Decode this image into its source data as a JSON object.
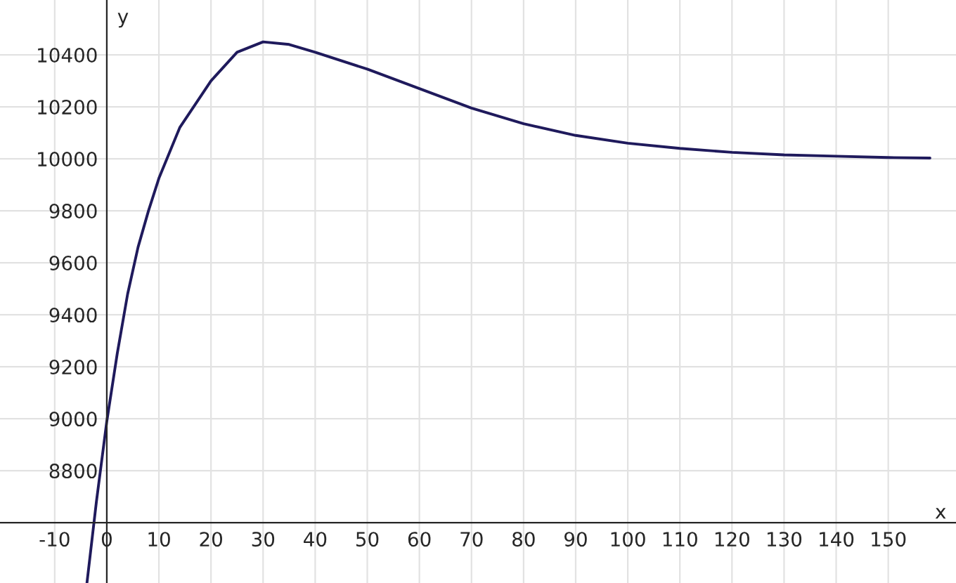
{
  "chart_data": {
    "type": "line",
    "xlabel": "x",
    "ylabel": "y",
    "x": [
      -3.8,
      -2,
      0,
      2,
      4,
      6,
      8,
      10,
      14,
      20,
      25,
      30,
      35,
      40,
      50,
      60,
      70,
      80,
      90,
      100,
      110,
      120,
      130,
      140,
      150,
      158
    ],
    "series": [
      {
        "color": "#1f1a5c",
        "values": [
          8370,
          8680,
          8990,
          9250,
          9480,
          9660,
          9800,
          9925,
          10120,
          10300,
          10410,
          10450,
          10440,
          10410,
          10345,
          10270,
          10195,
          10135,
          10090,
          10060,
          10040,
          10025,
          10015,
          10010,
          10005,
          10003
        ]
      }
    ],
    "xlim": [
      -20.5,
      163
    ],
    "ylim": [
      8368,
      10611
    ],
    "xticks": [
      -10,
      0,
      10,
      20,
      30,
      40,
      50,
      60,
      70,
      80,
      90,
      100,
      110,
      120,
      130,
      140,
      150
    ],
    "yticks": [
      8800,
      9000,
      9200,
      9400,
      9600,
      9800,
      10000,
      10200,
      10400
    ],
    "grid": true,
    "marker": "none",
    "line_style": "solid"
  }
}
